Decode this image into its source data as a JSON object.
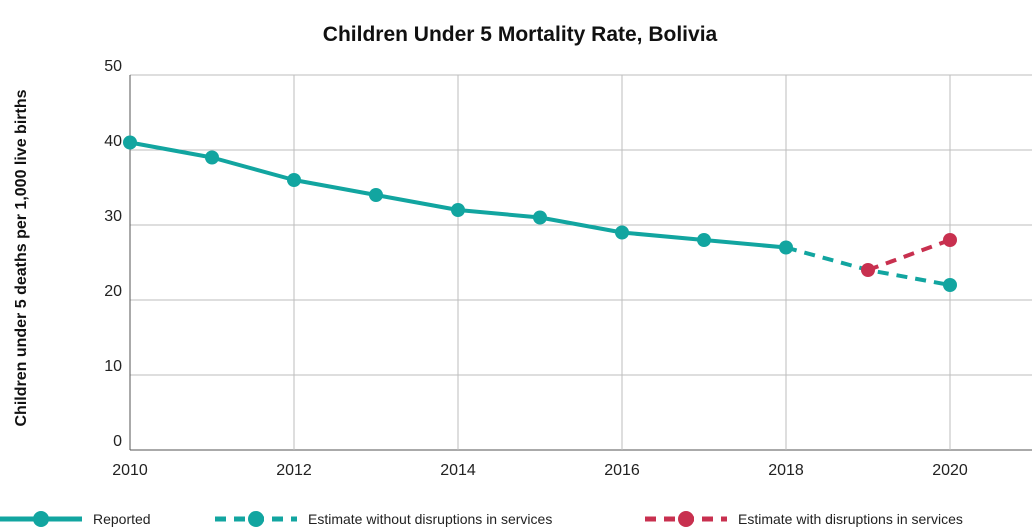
{
  "chart_data": {
    "type": "line",
    "title": "Children Under 5 Mortality Rate, Bolivia",
    "xlabel": "",
    "ylabel": "Children under 5 deaths per 1,000 live births",
    "xlim": [
      2010,
      2021
    ],
    "ylim": [
      0,
      50
    ],
    "x_ticks": [
      "2010",
      "2012",
      "2014",
      "2016",
      "2018",
      "2020"
    ],
    "y_ticks": [
      "0",
      "10",
      "20",
      "30",
      "40",
      "50"
    ],
    "grid": true,
    "legend_position": "bottom",
    "series": [
      {
        "name": "Reported",
        "style": "solid",
        "color": "#12a5a0",
        "x": [
          2010,
          2011,
          2012,
          2013,
          2014,
          2015,
          2016,
          2017,
          2018
        ],
        "y": [
          41,
          39,
          36,
          34,
          32,
          31,
          29,
          28,
          27
        ]
      },
      {
        "name": "Estimate without disruptions in services",
        "style": "dashed",
        "color": "#12a5a0",
        "x": [
          2018,
          2019,
          2020
        ],
        "y": [
          27,
          24,
          22
        ],
        "marker_x": [
          2020
        ],
        "marker_y": [
          22
        ]
      },
      {
        "name": "Estimate with disruptions in services",
        "style": "dashed",
        "color": "#c8304f",
        "x": [
          2019,
          2020
        ],
        "y": [
          24,
          28
        ],
        "marker_x": [
          2019,
          2020
        ],
        "marker_y": [
          24,
          28
        ]
      }
    ]
  }
}
